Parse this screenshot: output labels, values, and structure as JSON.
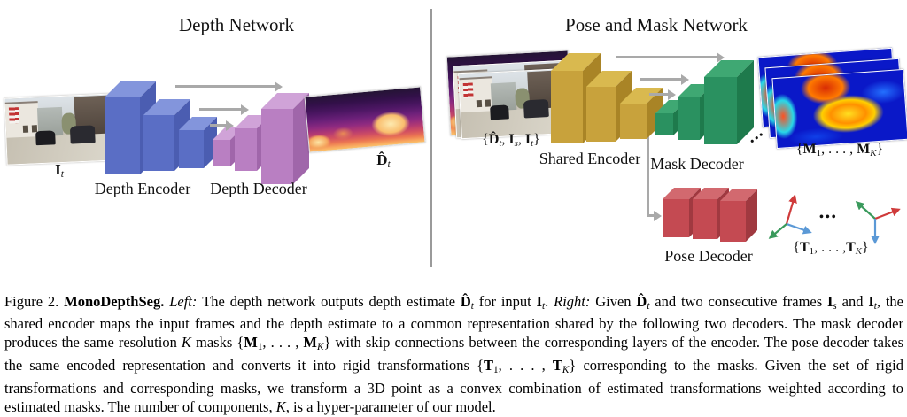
{
  "colors": {
    "blue-front": "#5a6ec5",
    "blue-top": "#8395dc",
    "blue-side": "#4b5db1",
    "purple-front": "#b97fc2",
    "purple-top": "#d0a3d8",
    "purple-side": "#a066aa",
    "yellow-front": "#c8a23c",
    "yellow-top": "#d9b94f",
    "yellow-side": "#a98426",
    "green-front": "#2a9160",
    "green-top": "#3fa873",
    "green-side": "#1e7a4c",
    "red-front": "#c44a52",
    "red-top": "#d2696f",
    "red-side": "#a03940",
    "arrow-gray": "#a9a9a9",
    "divider-gray": "#9a9a9a",
    "axis-red": "#cf3b3b",
    "axis-green": "#3a9a5c",
    "axis-blue": "#5b99d6"
  },
  "left_panel": {
    "title": "Depth Network",
    "encoder_label": "Depth Encoder",
    "decoder_label": "Depth Decoder",
    "input_label_segments": [
      {
        "t": "I",
        "s": "mb"
      },
      {
        "t": "t",
        "s": "isub"
      }
    ],
    "output_label_segments": [
      {
        "t": "D̂",
        "s": "mb"
      },
      {
        "t": "t",
        "s": "isub"
      }
    ]
  },
  "right_panel": {
    "title": "Pose and Mask Network",
    "encoder_label": "Shared Encoder",
    "mask_decoder_label": "Mask Decoder",
    "pose_decoder_label": "Pose Decoder",
    "input_label_segments": [
      {
        "t": "{",
        "s": "n"
      },
      {
        "t": "D̂",
        "s": "mb"
      },
      {
        "t": "t",
        "s": "isub"
      },
      {
        "t": ", ",
        "s": "n"
      },
      {
        "t": "I",
        "s": "mb"
      },
      {
        "t": "s",
        "s": "isub"
      },
      {
        "t": ", ",
        "s": "n"
      },
      {
        "t": "I",
        "s": "mb"
      },
      {
        "t": "t",
        "s": "isub"
      },
      {
        "t": "}",
        "s": "n"
      }
    ],
    "masks_label_segments": [
      {
        "t": "{",
        "s": "n"
      },
      {
        "t": "M",
        "s": "mb"
      },
      {
        "t": "1",
        "s": "sub"
      },
      {
        "t": ", . . . , ",
        "s": "n"
      },
      {
        "t": "M",
        "s": "mb"
      },
      {
        "t": "K",
        "s": "isub"
      },
      {
        "t": "}",
        "s": "n"
      }
    ],
    "transforms_label_segments": [
      {
        "t": "{",
        "s": "n"
      },
      {
        "t": "T",
        "s": "mb"
      },
      {
        "t": "1",
        "s": "sub"
      },
      {
        "t": ", . . . ,",
        "s": "n"
      },
      {
        "t": "T",
        "s": "mb"
      },
      {
        "t": "K",
        "s": "isub"
      },
      {
        "t": "}",
        "s": "n"
      }
    ],
    "frames_ellipsis": "•••",
    "masks_ellipsis": "•••"
  },
  "caption": {
    "segments": [
      {
        "t": "Figure 2. ",
        "s": "n"
      },
      {
        "t": "MonoDepthSeg. ",
        "s": "b"
      },
      {
        "t": "Left: ",
        "s": "i"
      },
      {
        "t": "The depth network outputs depth estimate ",
        "s": "n"
      },
      {
        "t": "D̂",
        "s": "mb"
      },
      {
        "t": "t",
        "s": "isub"
      },
      {
        "t": " for input ",
        "s": "n"
      },
      {
        "t": "I",
        "s": "mb"
      },
      {
        "t": "t",
        "s": "isub"
      },
      {
        "t": ". ",
        "s": "n"
      },
      {
        "t": "Right: ",
        "s": "i"
      },
      {
        "t": "Given ",
        "s": "n"
      },
      {
        "t": "D̂",
        "s": "mb"
      },
      {
        "t": "t",
        "s": "isub"
      },
      {
        "t": " and two consecutive frames ",
        "s": "n"
      },
      {
        "t": "I",
        "s": "mb"
      },
      {
        "t": "s",
        "s": "isub"
      },
      {
        "t": " and ",
        "s": "n"
      },
      {
        "t": "I",
        "s": "mb"
      },
      {
        "t": "t",
        "s": "isub"
      },
      {
        "t": ", the shared encoder maps the input frames and the depth estimate to a common representation shared by the following two decoders. The mask decoder produces the same resolution ",
        "s": "n"
      },
      {
        "t": "K",
        "s": "mi"
      },
      {
        "t": " masks {",
        "s": "n"
      },
      {
        "t": "M",
        "s": "mb"
      },
      {
        "t": "1",
        "s": "sub"
      },
      {
        "t": ", . . . , ",
        "s": "n"
      },
      {
        "t": "M",
        "s": "mb"
      },
      {
        "t": "K",
        "s": "isub"
      },
      {
        "t": "} with skip connections between the corresponding layers of the encoder. The pose decoder takes the same encoded representation and converts it into rigid transformations {",
        "s": "n"
      },
      {
        "t": "T",
        "s": "mb"
      },
      {
        "t": "1",
        "s": "sub"
      },
      {
        "t": ", . . . , ",
        "s": "n"
      },
      {
        "t": "T",
        "s": "mb"
      },
      {
        "t": "K",
        "s": "isub"
      },
      {
        "t": "} corresponding to the masks. Given the set of rigid transformations and corresponding masks, we transform a 3D point as a convex combination of estimated transformations weighted according to estimated masks. The number of components, ",
        "s": "n"
      },
      {
        "t": "K",
        "s": "mi"
      },
      {
        "t": ", is a hyper-parameter of our model.",
        "s": "n"
      }
    ]
  }
}
